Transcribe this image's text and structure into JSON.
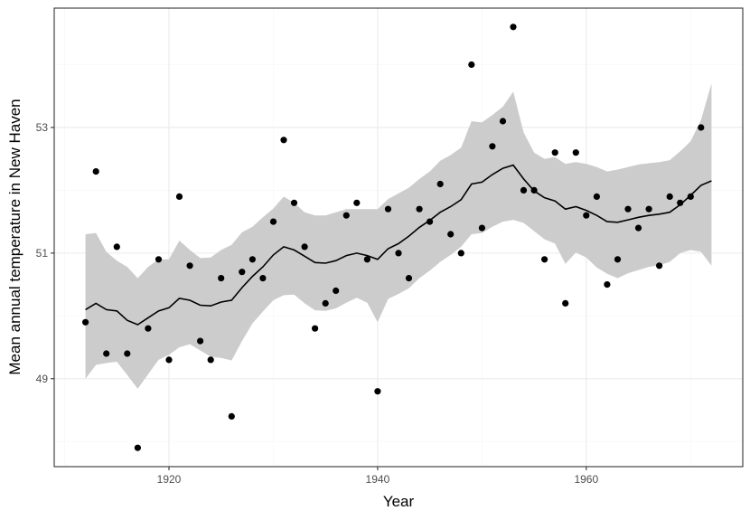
{
  "chart_data": {
    "type": "scatter",
    "xlabel": "Year",
    "ylabel": "Mean annual temperature in New Haven",
    "xlim": [
      1909,
      1975
    ],
    "ylim": [
      47.6,
      54.9
    ],
    "x_ticks": [
      1920,
      1940,
      1960
    ],
    "x_tick_labels": [
      "1920",
      "1940",
      "1960"
    ],
    "y_ticks": [
      49,
      51,
      53
    ],
    "y_tick_labels": [
      "49",
      "51",
      "53"
    ],
    "grid": true,
    "legend": "none",
    "colors": {
      "points": "#000000",
      "line": "#000000",
      "band": "#cccccc",
      "grid_major": "#ebebeb",
      "grid_minor": "#f5f5f5",
      "panel_border": "#333333"
    },
    "points": {
      "x": [
        1912,
        1913,
        1914,
        1915,
        1916,
        1917,
        1918,
        1919,
        1920,
        1921,
        1922,
        1923,
        1924,
        1925,
        1926,
        1927,
        1928,
        1929,
        1930,
        1931,
        1932,
        1933,
        1934,
        1935,
        1936,
        1937,
        1938,
        1939,
        1940,
        1941,
        1942,
        1943,
        1944,
        1945,
        1946,
        1947,
        1948,
        1949,
        1950,
        1951,
        1952,
        1953,
        1954,
        1955,
        1956,
        1957,
        1958,
        1959,
        1960,
        1961,
        1962,
        1963,
        1964,
        1965,
        1966,
        1967,
        1968,
        1969,
        1970,
        1971
      ],
      "y": [
        49.9,
        52.3,
        49.4,
        51.1,
        49.4,
        47.9,
        49.8,
        50.9,
        49.3,
        51.9,
        50.8,
        49.6,
        49.3,
        50.6,
        48.4,
        50.7,
        50.9,
        50.6,
        51.5,
        52.8,
        51.8,
        51.1,
        49.8,
        50.2,
        50.4,
        51.6,
        51.8,
        50.9,
        48.8,
        51.7,
        51.0,
        50.6,
        51.7,
        51.5,
        52.1,
        51.3,
        51.0,
        54.0,
        51.4,
        52.7,
        53.1,
        54.6,
        52.0,
        52.0,
        50.9,
        52.6,
        50.2,
        52.6,
        51.6,
        51.9,
        50.5,
        50.9,
        51.7,
        51.4,
        51.7,
        50.8,
        51.9,
        51.8,
        51.9,
        53.0
      ]
    },
    "smooth": {
      "x": [
        1912,
        1913,
        1914,
        1915,
        1916,
        1917,
        1918,
        1919,
        1920,
        1921,
        1922,
        1923,
        1924,
        1925,
        1926,
        1927,
        1928,
        1929,
        1930,
        1931,
        1932,
        1933,
        1934,
        1935,
        1936,
        1937,
        1938,
        1939,
        1940,
        1941,
        1942,
        1943,
        1944,
        1945,
        1946,
        1947,
        1948,
        1949,
        1950,
        1951,
        1952,
        1953,
        1954,
        1955,
        1956,
        1957,
        1958,
        1959,
        1960,
        1961,
        1962,
        1963,
        1964,
        1965,
        1966,
        1967,
        1968,
        1969,
        1970,
        1971,
        1972
      ],
      "y": [
        50.1,
        50.2,
        50.1,
        50.08,
        49.93,
        49.86,
        49.97,
        50.08,
        50.13,
        50.28,
        50.25,
        50.17,
        50.16,
        50.22,
        50.25,
        50.45,
        50.63,
        50.78,
        50.97,
        51.1,
        51.05,
        50.95,
        50.85,
        50.84,
        50.88,
        50.96,
        51.0,
        50.96,
        50.9,
        51.07,
        51.15,
        51.27,
        51.41,
        51.52,
        51.65,
        51.74,
        51.85,
        52.1,
        52.13,
        52.25,
        52.35,
        52.4,
        52.18,
        51.99,
        51.88,
        51.83,
        51.7,
        51.74,
        51.68,
        51.6,
        51.5,
        51.49,
        51.53,
        51.57,
        51.6,
        51.62,
        51.65,
        51.77,
        51.92,
        52.08,
        52.15
      ],
      "lower": [
        49.0,
        49.22,
        49.25,
        49.27,
        49.06,
        48.84,
        49.07,
        49.3,
        49.38,
        49.5,
        49.55,
        49.45,
        49.35,
        49.33,
        49.29,
        49.6,
        49.88,
        50.07,
        50.25,
        50.33,
        50.34,
        50.2,
        50.09,
        50.08,
        50.12,
        50.21,
        50.29,
        50.21,
        49.9,
        50.27,
        50.35,
        50.44,
        50.6,
        50.72,
        50.86,
        50.97,
        51.1,
        51.3,
        51.32,
        51.42,
        51.5,
        51.53,
        51.48,
        51.35,
        51.22,
        51.15,
        50.83,
        51.01,
        50.93,
        50.77,
        50.67,
        50.6,
        50.68,
        50.73,
        50.78,
        50.81,
        50.86,
        51.0,
        51.05,
        51.02,
        50.8
      ],
      "upper": [
        51.3,
        51.32,
        51.02,
        50.88,
        50.78,
        50.6,
        50.78,
        50.9,
        50.9,
        51.2,
        51.05,
        50.92,
        50.93,
        51.05,
        51.13,
        51.33,
        51.42,
        51.57,
        51.71,
        51.9,
        51.8,
        51.65,
        51.6,
        51.6,
        51.65,
        51.7,
        51.7,
        51.7,
        51.7,
        51.86,
        51.95,
        52.04,
        52.18,
        52.3,
        52.47,
        52.56,
        52.68,
        53.1,
        53.08,
        53.2,
        53.33,
        53.57,
        52.92,
        52.6,
        52.5,
        52.53,
        52.42,
        52.45,
        52.42,
        52.37,
        52.3,
        52.33,
        52.37,
        52.41,
        52.43,
        52.45,
        52.48,
        52.62,
        52.78,
        53.12,
        53.7
      ]
    }
  }
}
